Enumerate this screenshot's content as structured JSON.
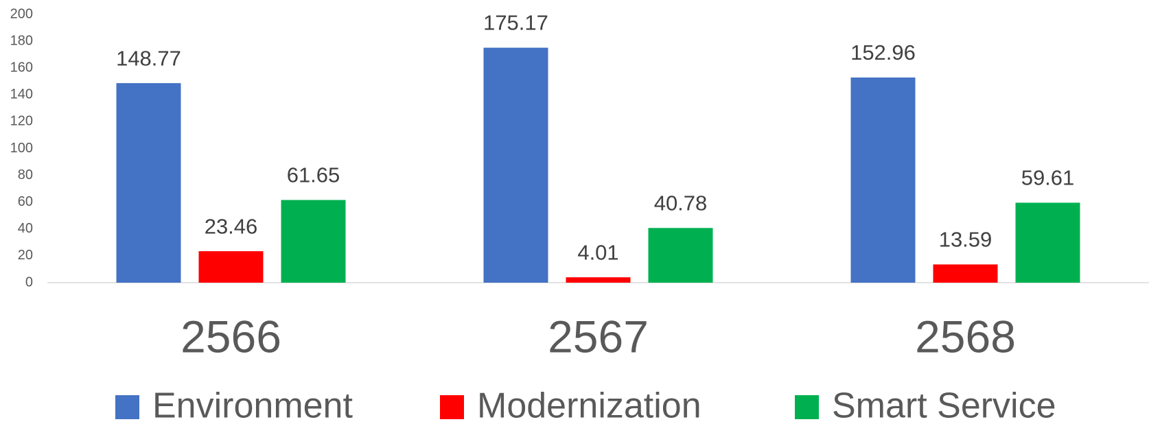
{
  "chart_data": {
    "type": "bar",
    "categories": [
      "2566",
      "2567",
      "2568"
    ],
    "series": [
      {
        "name": "Environment",
        "color": "#4472C4",
        "values": [
          148.77,
          175.17,
          152.96
        ]
      },
      {
        "name": "Modernization",
        "color": "#FF0000",
        "values": [
          23.46,
          4.01,
          13.59
        ]
      },
      {
        "name": "Smart Service",
        "color": "#00B050",
        "values": [
          61.65,
          40.78,
          59.61
        ]
      }
    ],
    "ylim": [
      0,
      200
    ],
    "yticks": [
      0,
      20,
      40,
      60,
      80,
      100,
      120,
      140,
      160,
      180,
      200
    ],
    "grid": false,
    "legend": "bottom"
  }
}
